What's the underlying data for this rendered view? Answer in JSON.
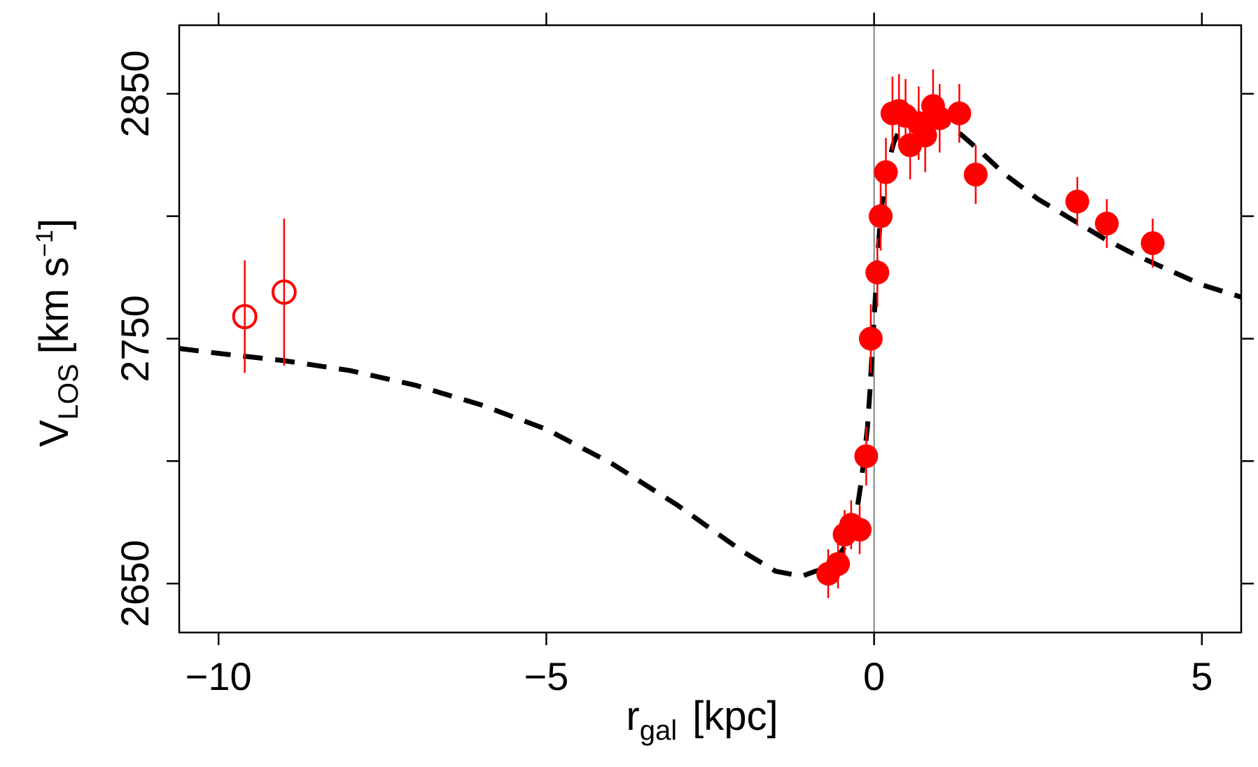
{
  "chart_data": {
    "type": "scatter",
    "xlabel": {
      "main": "r",
      "sub": "gal",
      "unit": "[kpc]"
    },
    "ylabel": {
      "main": "V",
      "sub": "LOS",
      "unit_pre": "[km s",
      "unit_sup": "−1",
      "unit_post": "]"
    },
    "xlim": [
      -10.6,
      5.6
    ],
    "ylim": [
      2630,
      2878
    ],
    "xticks": [
      -10,
      -5,
      0,
      5
    ],
    "xtick_labels": [
      "−10",
      "−5",
      "0",
      "5"
    ],
    "yticks": [
      2650,
      2700,
      2750,
      2800,
      2850
    ],
    "ytick_labels": [
      "2650",
      "",
      "2750",
      "",
      "2850"
    ],
    "reference_line": {
      "x": 0,
      "color": "#808080"
    },
    "colors": {
      "points": "#ff0000",
      "model": "#000000",
      "axis": "#000000"
    },
    "series": [
      {
        "name": "filled points",
        "marker": "filled-circle",
        "points": [
          {
            "x": -0.7,
            "y": 2654,
            "err": 10
          },
          {
            "x": -0.55,
            "y": 2658,
            "err": 10
          },
          {
            "x": -0.45,
            "y": 2670,
            "err": 10
          },
          {
            "x": -0.35,
            "y": 2674,
            "err": 10
          },
          {
            "x": -0.22,
            "y": 2672,
            "err": 10
          },
          {
            "x": -0.12,
            "y": 2702,
            "err": 12
          },
          {
            "x": -0.05,
            "y": 2750,
            "err": 14
          },
          {
            "x": 0.05,
            "y": 2777,
            "err": 14
          },
          {
            "x": 0.1,
            "y": 2800,
            "err": 14
          },
          {
            "x": 0.18,
            "y": 2818,
            "err": 14
          },
          {
            "x": 0.28,
            "y": 2842,
            "err": 15
          },
          {
            "x": 0.38,
            "y": 2843,
            "err": 15
          },
          {
            "x": 0.48,
            "y": 2841,
            "err": 15
          },
          {
            "x": 0.55,
            "y": 2829,
            "err": 14
          },
          {
            "x": 0.68,
            "y": 2838,
            "err": 15
          },
          {
            "x": 0.78,
            "y": 2833,
            "err": 15
          },
          {
            "x": 0.9,
            "y": 2845,
            "err": 15
          },
          {
            "x": 1.0,
            "y": 2840,
            "err": 14
          },
          {
            "x": 1.3,
            "y": 2842,
            "err": 12
          },
          {
            "x": 1.55,
            "y": 2817,
            "err": 12
          },
          {
            "x": 3.1,
            "y": 2806,
            "err": 10
          },
          {
            "x": 3.55,
            "y": 2797,
            "err": 10
          },
          {
            "x": 4.25,
            "y": 2789,
            "err": 10
          }
        ]
      },
      {
        "name": "open points",
        "marker": "open-circle",
        "points": [
          {
            "x": -9.6,
            "y": 2759,
            "err": 23
          },
          {
            "x": -9.0,
            "y": 2769,
            "err": 30
          }
        ]
      }
    ],
    "model_curve": {
      "style": "dashed",
      "x": [
        -10.6,
        -10.0,
        -9.0,
        -8.0,
        -7.0,
        -6.0,
        -5.0,
        -4.0,
        -3.0,
        -2.0,
        -1.5,
        -1.1,
        -0.9,
        -0.75,
        -0.6,
        -0.5,
        -0.42,
        -0.35,
        -0.3,
        -0.25,
        -0.2,
        -0.15,
        -0.1,
        -0.06,
        -0.03,
        0.0,
        0.03,
        0.06,
        0.1,
        0.15,
        0.2,
        0.3,
        0.4,
        0.5,
        0.7,
        0.9,
        1.1,
        1.3,
        1.6,
        2.0,
        2.5,
        3.0,
        3.5,
        4.0,
        4.5,
        5.0,
        5.6
      ],
      "y": [
        2746,
        2744,
        2741,
        2737,
        2731,
        2723,
        2713,
        2699,
        2682,
        2663,
        2655,
        2653,
        2655,
        2656,
        2659,
        2663,
        2666,
        2670,
        2676,
        2682,
        2691,
        2702,
        2714,
        2730,
        2745,
        2758,
        2772,
        2786,
        2800,
        2812,
        2820,
        2830,
        2836,
        2840,
        2842,
        2841,
        2838,
        2834,
        2827,
        2817,
        2807,
        2799,
        2791,
        2784,
        2778,
        2772,
        2767
      ]
    }
  }
}
